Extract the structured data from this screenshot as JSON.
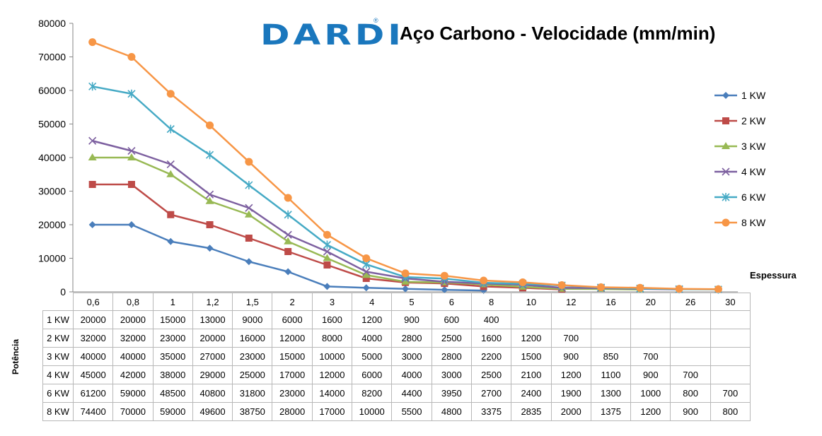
{
  "logo": {
    "text": "DARDI",
    "registered": "®"
  },
  "chart_data": {
    "type": "line",
    "title": "Aço Carbono - Velocidade (mm/min)",
    "xlabel": "Espessura",
    "ylabel": "Potência",
    "ylim": [
      0,
      80000
    ],
    "yticks": [
      "0",
      "10000",
      "20000",
      "30000",
      "40000",
      "50000",
      "60000",
      "70000",
      "80000"
    ],
    "categories": [
      "0,6",
      "0,8",
      "1",
      "1,2",
      "1,5",
      "2",
      "3",
      "4",
      "5",
      "6",
      "8",
      "10",
      "12",
      "16",
      "20",
      "26",
      "30"
    ],
    "legend_position": "right",
    "series": [
      {
        "name": "1 KW",
        "color": "#4a7ebb",
        "marker": "diamond",
        "values": [
          20000,
          20000,
          15000,
          13000,
          9000,
          6000,
          1600,
          1200,
          900,
          600,
          400,
          null,
          null,
          null,
          null,
          null,
          null
        ]
      },
      {
        "name": "2 KW",
        "color": "#be4b48",
        "marker": "square",
        "values": [
          32000,
          32000,
          23000,
          20000,
          16000,
          12000,
          8000,
          4000,
          2800,
          2500,
          1600,
          1200,
          700,
          null,
          null,
          null,
          null
        ]
      },
      {
        "name": "3 KW",
        "color": "#98b954",
        "marker": "triangle",
        "values": [
          40000,
          40000,
          35000,
          27000,
          23000,
          15000,
          10000,
          5000,
          3000,
          2800,
          2200,
          1500,
          900,
          850,
          700,
          null,
          null
        ]
      },
      {
        "name": "4 KW",
        "color": "#7d60a0",
        "marker": "x",
        "values": [
          45000,
          42000,
          38000,
          29000,
          25000,
          17000,
          12000,
          6000,
          4000,
          3000,
          2500,
          2100,
          1200,
          1100,
          900,
          700,
          null
        ]
      },
      {
        "name": "6 KW",
        "color": "#46aac5",
        "marker": "star",
        "values": [
          61200,
          59000,
          48500,
          40800,
          31800,
          23000,
          14000,
          8200,
          4400,
          3950,
          2700,
          2400,
          1900,
          1300,
          1000,
          800,
          700
        ]
      },
      {
        "name": "8 KW",
        "color": "#f79646",
        "marker": "circle",
        "values": [
          74400,
          70000,
          59000,
          49600,
          38750,
          28000,
          17000,
          10000,
          5500,
          4800,
          3375,
          2835,
          2000,
          1375,
          1200,
          900,
          800
        ]
      }
    ],
    "table": {
      "rows": [
        {
          "label": "1 KW",
          "cells": [
            "20000",
            "20000",
            "15000",
            "13000",
            "9000",
            "6000",
            "1600",
            "1200",
            "900",
            "600",
            "400",
            "",
            "",
            "",
            "",
            "",
            ""
          ]
        },
        {
          "label": "2 KW",
          "cells": [
            "32000",
            "32000",
            "23000",
            "20000",
            "16000",
            "12000",
            "8000",
            "4000",
            "2800",
            "2500",
            "1600",
            "1200",
            "700",
            "",
            "",
            "",
            ""
          ]
        },
        {
          "label": "3 KW",
          "cells": [
            "40000",
            "40000",
            "35000",
            "27000",
            "23000",
            "15000",
            "10000",
            "5000",
            "3000",
            "2800",
            "2200",
            "1500",
            "900",
            "850",
            "700",
            "",
            ""
          ]
        },
        {
          "label": "4 KW",
          "cells": [
            "45000",
            "42000",
            "38000",
            "29000",
            "25000",
            "17000",
            "12000",
            "6000",
            "4000",
            "3000",
            "2500",
            "2100",
            "1200",
            "1100",
            "900",
            "700",
            ""
          ]
        },
        {
          "label": "6 KW",
          "cells": [
            "61200",
            "59000",
            "48500",
            "40800",
            "31800",
            "23000",
            "14000",
            "8200",
            "4400",
            "3950",
            "2700",
            "2400",
            "1900",
            "1300",
            "1000",
            "800",
            "700"
          ]
        },
        {
          "label": "8 KW",
          "cells": [
            "74400",
            "70000",
            "59000",
            "49600",
            "38750",
            "28000",
            "17000",
            "10000",
            "5500",
            "4800",
            "3375",
            "2835",
            "2000",
            "1375",
            "1200",
            "900",
            "800"
          ]
        }
      ]
    }
  }
}
